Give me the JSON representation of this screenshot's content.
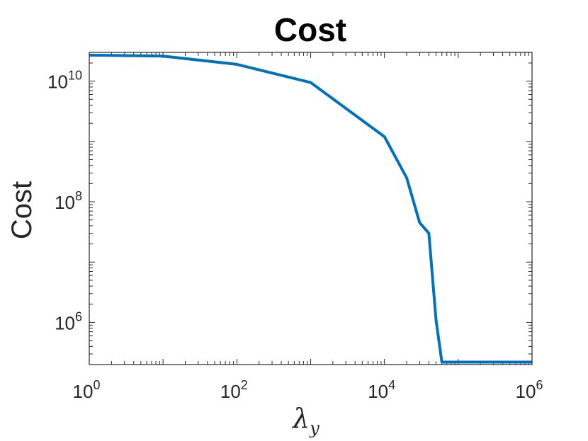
{
  "chart_data": {
    "type": "line",
    "title": "Cost",
    "xlabel": "λ",
    "xlabel_subscript": "y",
    "ylabel": "Cost",
    "x_scale": "log",
    "y_scale": "log",
    "xlim": [
      1,
      1000000
    ],
    "ylim": [
      200000,
      30000000000
    ],
    "x_ticks": [
      {
        "value": 1,
        "base": "10",
        "exp": "0"
      },
      {
        "value": 100,
        "base": "10",
        "exp": "2"
      },
      {
        "value": 10000,
        "base": "10",
        "exp": "4"
      },
      {
        "value": 1000000,
        "base": "10",
        "exp": "6"
      }
    ],
    "y_ticks": [
      {
        "value": 1000000,
        "base": "10",
        "exp": "6"
      },
      {
        "value": 100000000,
        "base": "10",
        "exp": "8"
      },
      {
        "value": 10000000000,
        "base": "10",
        "exp": "10"
      }
    ],
    "grid": false,
    "box": true,
    "series": [
      {
        "color": "#0072BD",
        "x": [
          1,
          10,
          100,
          1000,
          10000,
          20000,
          30000,
          40000,
          50000,
          60000,
          1000000
        ],
        "y": [
          27000000000,
          26000000000,
          19000000000,
          9500000000,
          1200000000,
          250000000,
          45000000,
          30000000,
          1100000,
          220000,
          220000
        ]
      }
    ]
  }
}
